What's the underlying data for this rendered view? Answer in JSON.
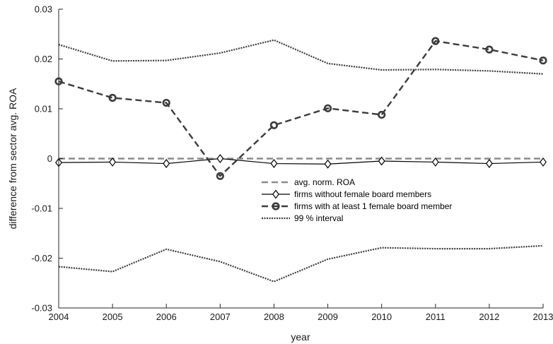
{
  "chart_data": {
    "type": "line",
    "title": "",
    "xlabel": "year",
    "ylabel": "difference from sector avg. ROA",
    "xlim": [
      2004,
      2013
    ],
    "ylim": [
      -0.03,
      0.03
    ],
    "x_ticks": [
      2004,
      2005,
      2006,
      2007,
      2008,
      2009,
      2010,
      2011,
      2012,
      2013
    ],
    "x_tick_labels": [
      "2004",
      "2005",
      "2006",
      "2007",
      "2008",
      "2009",
      "2010",
      "2011",
      "2012",
      "2013"
    ],
    "y_ticks": [
      -0.03,
      -0.02,
      -0.01,
      0,
      0.01,
      0.02,
      0.03
    ],
    "y_tick_labels": [
      "-0.03",
      "-0.02",
      "-0.01",
      "0",
      "0.01",
      "0.02",
      "0.03"
    ],
    "grid": false,
    "legend_position": "center",
    "x": [
      2004,
      2005,
      2006,
      2007,
      2008,
      2009,
      2010,
      2011,
      2012,
      2013
    ],
    "series": [
      {
        "name": "avg. norm. ROA",
        "style": "dashed",
        "color": "#8c8c8c",
        "marker": "none",
        "values": [
          0,
          0,
          0,
          0,
          0,
          0,
          0,
          0,
          0,
          0
        ]
      },
      {
        "name": "firms without female board members",
        "style": "solid",
        "color": "#000000",
        "marker": "diamond",
        "values": [
          -0.0008,
          -0.0007,
          -0.001,
          0.0,
          -0.001,
          -0.0011,
          -0.0005,
          -0.0007,
          -0.001,
          -0.0007
        ]
      },
      {
        "name": "firms with at least 1 female board member",
        "style": "dashed",
        "color": "#3c3c3c",
        "marker": "circle",
        "values": [
          0.0155,
          0.0122,
          0.0112,
          -0.0035,
          0.0067,
          0.0101,
          0.0088,
          0.0236,
          0.0219,
          0.0197
        ]
      },
      {
        "name": "99 % interval",
        "style": "dotted",
        "color": "#3c3c3c",
        "marker": "none",
        "values": [
          0.0229,
          0.0196,
          0.0197,
          0.0212,
          0.0238,
          0.0191,
          0.0178,
          0.0179,
          0.0176,
          0.017
        ]
      },
      {
        "name": "",
        "style": "dotted",
        "color": "#3c3c3c",
        "marker": "none",
        "values": [
          -0.0217,
          -0.0227,
          -0.0182,
          -0.0207,
          -0.0247,
          -0.0202,
          -0.0179,
          -0.0181,
          -0.0181,
          -0.0175
        ]
      }
    ]
  }
}
